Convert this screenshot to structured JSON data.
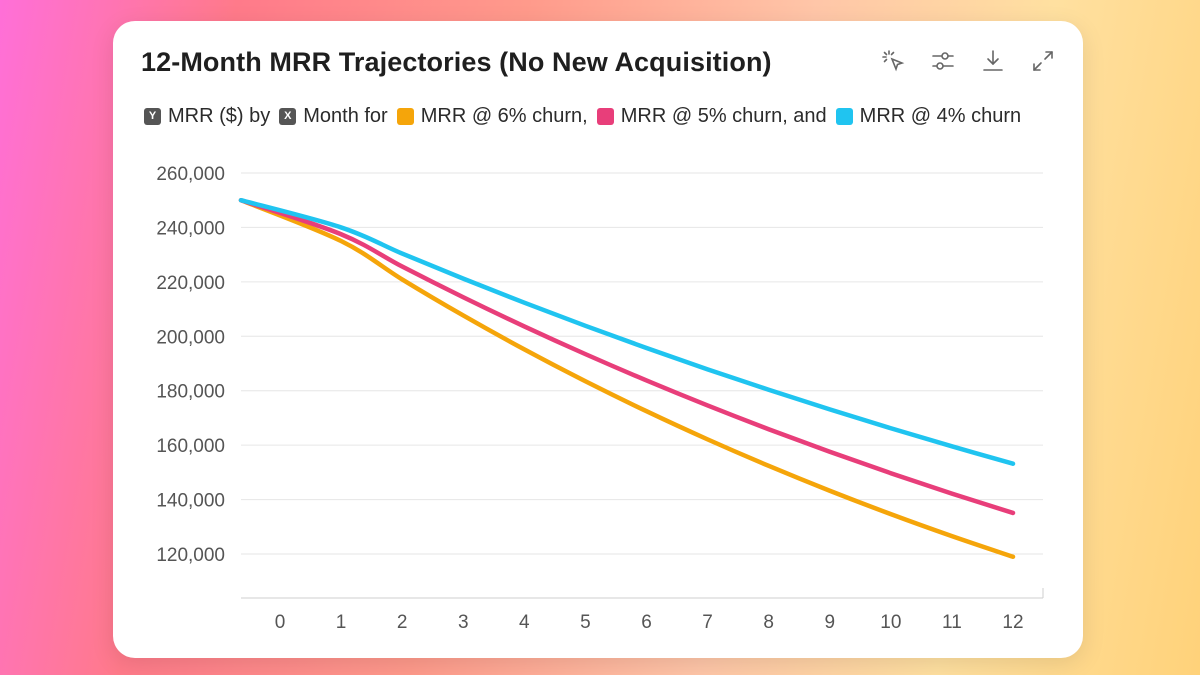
{
  "title": "12-Month MRR Trajectories (No New Acquisition)",
  "toolbar": [
    {
      "name": "select-tool-icon",
      "label": "select"
    },
    {
      "name": "settings-sliders-icon",
      "label": "settings"
    },
    {
      "name": "download-icon",
      "label": "download"
    },
    {
      "name": "expand-icon",
      "label": "expand"
    }
  ],
  "legend": {
    "y_tag": "Y",
    "y_text": "MRR ($) by",
    "x_tag": "X",
    "x_text": "Month for",
    "series": [
      {
        "label": "MRR @ 6% churn,",
        "color": "#F5A50A"
      },
      {
        "label": "MRR @ 5% churn, and",
        "color": "#E83E7A"
      },
      {
        "label": "MRR @ 4% churn",
        "color": "#20C4F0"
      }
    ]
  },
  "chart_data": {
    "type": "line",
    "x": [
      0,
      1,
      2,
      3,
      4,
      5,
      6,
      7,
      8,
      9,
      10,
      11,
      12
    ],
    "xlabel": "",
    "ylabel": "",
    "ylim": [
      110000,
      260000
    ],
    "yticks": [
      260000,
      240000,
      220000,
      200000,
      180000,
      160000,
      140000,
      120000
    ],
    "ytick_labels": [
      "260,000",
      "240,000",
      "220,000",
      "200,000",
      "180,000",
      "160,000",
      "140,000",
      "120,000"
    ],
    "xtick_labels": [
      "0",
      "1",
      "2",
      "3",
      "4",
      "5",
      "6",
      "7",
      "8",
      "9",
      "10",
      "11",
      "12"
    ],
    "grid": true,
    "series": [
      {
        "name": "MRR @ 6% churn",
        "color": "#F5A50A",
        "values": [
          250000,
          235000,
          220900,
          207646,
          195187,
          183476,
          172467,
          162119,
          152392,
          143248,
          134654,
          126575,
          118980
        ]
      },
      {
        "name": "MRR @ 5% churn",
        "color": "#E83E7A",
        "values": [
          250000,
          237500,
          225625,
          214344,
          203627,
          193445,
          183773,
          174584,
          165855,
          157562,
          149684,
          142200,
          135090
        ]
      },
      {
        "name": "MRR @ 4% churn",
        "color": "#20C4F0",
        "values": [
          250000,
          240000,
          230400,
          221184,
          212337,
          203843,
          195689,
          187862,
          180347,
          173133,
          166208,
          159560,
          153177
        ]
      }
    ]
  }
}
